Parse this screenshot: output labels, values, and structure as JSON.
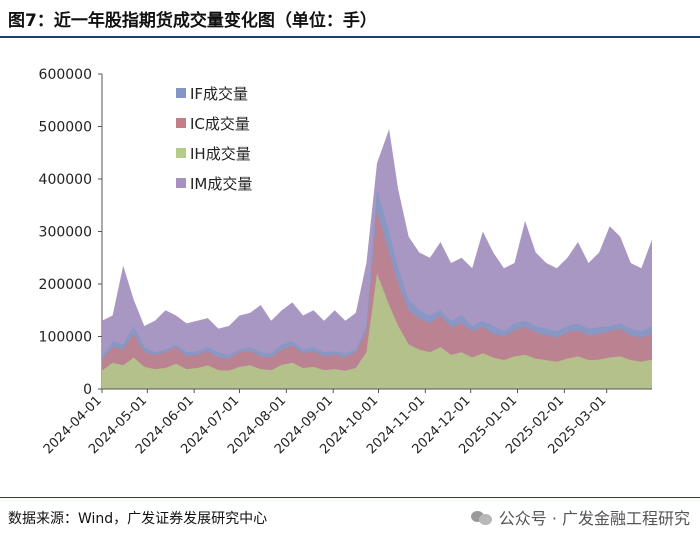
{
  "title": "图7：近一年股指期货成交量变化图（单位：手）",
  "source": "数据来源：Wind，广发证券发展研究中心",
  "watermark": "公众号 · 广发金融工程研究",
  "watermark_icon": "wechat-icon",
  "colors": {
    "rule": "#1f3d7a",
    "IF": "#8497c4",
    "IC": "#c47e8a",
    "IH": "#b3cc88",
    "IM": "#a491c0"
  },
  "chart_data": {
    "type": "area",
    "title": "",
    "xlabel": "",
    "ylabel": "",
    "ylim": [
      0,
      600000
    ],
    "yticks": [
      0,
      100000,
      200000,
      300000,
      400000,
      500000,
      600000
    ],
    "ytick_labels": [
      "0",
      "100000",
      "200000",
      "300000",
      "400000",
      "500000",
      "600000"
    ],
    "x_range": [
      "2024-04-01",
      "2025-03-31"
    ],
    "xtick_labels": [
      "2024-04-01",
      "2024-05-01",
      "2024-06-01",
      "2024-07-01",
      "2024-08-01",
      "2024-09-01",
      "2024-10-01",
      "2024-11-01",
      "2024-12-01",
      "2025-01-01",
      "2025-02-01",
      "2025-03-01"
    ],
    "legend_position": "top-left",
    "grid": false,
    "series_order_front_to_back": [
      "IH",
      "IC",
      "IF",
      "IM"
    ],
    "series": [
      {
        "name": "IF成交量",
        "key": "IF",
        "x": [
          "2024-04-01",
          "2024-04-08",
          "2024-04-15",
          "2024-04-22",
          "2024-04-29",
          "2024-05-06",
          "2024-05-13",
          "2024-05-20",
          "2024-05-27",
          "2024-06-03",
          "2024-06-10",
          "2024-06-17",
          "2024-06-24",
          "2024-07-01",
          "2024-07-08",
          "2024-07-15",
          "2024-07-22",
          "2024-07-29",
          "2024-08-05",
          "2024-08-12",
          "2024-08-19",
          "2024-08-26",
          "2024-09-02",
          "2024-09-09",
          "2024-09-16",
          "2024-09-23",
          "2024-09-30",
          "2024-10-08",
          "2024-10-14",
          "2024-10-21",
          "2024-10-28",
          "2024-11-04",
          "2024-11-11",
          "2024-11-18",
          "2024-11-25",
          "2024-12-02",
          "2024-12-09",
          "2024-12-16",
          "2024-12-23",
          "2024-12-30",
          "2025-01-06",
          "2025-01-13",
          "2025-01-20",
          "2025-01-27",
          "2025-02-03",
          "2025-02-10",
          "2025-02-17",
          "2025-02-24",
          "2025-03-03",
          "2025-03-10",
          "2025-03-17",
          "2025-03-24",
          "2025-03-31"
        ],
        "values": [
          60000,
          90000,
          85000,
          120000,
          80000,
          70000,
          75000,
          85000,
          70000,
          72000,
          80000,
          70000,
          65000,
          75000,
          80000,
          70000,
          68000,
          85000,
          90000,
          75000,
          80000,
          70000,
          72000,
          68000,
          75000,
          120000,
          380000,
          300000,
          230000,
          170000,
          150000,
          140000,
          150000,
          130000,
          140000,
          120000,
          130000,
          120000,
          110000,
          125000,
          130000,
          120000,
          115000,
          110000,
          120000,
          125000,
          115000,
          118000,
          120000,
          125000,
          115000,
          110000,
          120000
        ]
      },
      {
        "name": "IC成交量",
        "key": "IC",
        "x": [
          "2024-04-01",
          "2024-04-08",
          "2024-04-15",
          "2024-04-22",
          "2024-04-29",
          "2024-05-06",
          "2024-05-13",
          "2024-05-20",
          "2024-05-27",
          "2024-06-03",
          "2024-06-10",
          "2024-06-17",
          "2024-06-24",
          "2024-07-01",
          "2024-07-08",
          "2024-07-15",
          "2024-07-22",
          "2024-07-29",
          "2024-08-05",
          "2024-08-12",
          "2024-08-19",
          "2024-08-26",
          "2024-09-02",
          "2024-09-09",
          "2024-09-16",
          "2024-09-23",
          "2024-09-30",
          "2024-10-08",
          "2024-10-14",
          "2024-10-21",
          "2024-10-28",
          "2024-11-04",
          "2024-11-11",
          "2024-11-18",
          "2024-11-25",
          "2024-12-02",
          "2024-12-09",
          "2024-12-16",
          "2024-12-23",
          "2024-12-30",
          "2025-01-06",
          "2025-01-13",
          "2025-01-20",
          "2025-01-27",
          "2025-02-03",
          "2025-02-10",
          "2025-02-17",
          "2025-02-24",
          "2025-03-03",
          "2025-03-10",
          "2025-03-17",
          "2025-03-24",
          "2025-03-31"
        ],
        "values": [
          55000,
          80000,
          75000,
          105000,
          70000,
          65000,
          70000,
          80000,
          62000,
          65000,
          72000,
          60000,
          58000,
          70000,
          72000,
          62000,
          60000,
          75000,
          82000,
          68000,
          72000,
          62000,
          65000,
          60000,
          70000,
          110000,
          340000,
          260000,
          200000,
          150000,
          135000,
          125000,
          140000,
          118000,
          125000,
          110000,
          118000,
          105000,
          100000,
          112000,
          118000,
          108000,
          102000,
          98000,
          108000,
          112000,
          102000,
          105000,
          110000,
          115000,
          102000,
          98000,
          105000
        ]
      },
      {
        "name": "IH成交量",
        "key": "IH",
        "x": [
          "2024-04-01",
          "2024-04-08",
          "2024-04-15",
          "2024-04-22",
          "2024-04-29",
          "2024-05-06",
          "2024-05-13",
          "2024-05-20",
          "2024-05-27",
          "2024-06-03",
          "2024-06-10",
          "2024-06-17",
          "2024-06-24",
          "2024-07-01",
          "2024-07-08",
          "2024-07-15",
          "2024-07-22",
          "2024-07-29",
          "2024-08-05",
          "2024-08-12",
          "2024-08-19",
          "2024-08-26",
          "2024-09-02",
          "2024-09-09",
          "2024-09-16",
          "2024-09-23",
          "2024-09-30",
          "2024-10-08",
          "2024-10-14",
          "2024-10-21",
          "2024-10-28",
          "2024-11-04",
          "2024-11-11",
          "2024-11-18",
          "2024-11-25",
          "2024-12-02",
          "2024-12-09",
          "2024-12-16",
          "2024-12-23",
          "2024-12-30",
          "2025-01-06",
          "2025-01-13",
          "2025-01-20",
          "2025-01-27",
          "2025-02-03",
          "2025-02-10",
          "2025-02-17",
          "2025-02-24",
          "2025-03-03",
          "2025-03-10",
          "2025-03-17",
          "2025-03-24",
          "2025-03-31"
        ],
        "values": [
          35000,
          50000,
          45000,
          60000,
          42000,
          38000,
          40000,
          48000,
          38000,
          40000,
          45000,
          36000,
          35000,
          42000,
          45000,
          38000,
          36000,
          46000,
          50000,
          40000,
          42000,
          36000,
          38000,
          35000,
          40000,
          70000,
          220000,
          160000,
          120000,
          85000,
          75000,
          70000,
          80000,
          65000,
          70000,
          60000,
          68000,
          60000,
          55000,
          62000,
          65000,
          58000,
          55000,
          52000,
          58000,
          62000,
          55000,
          56000,
          60000,
          62000,
          55000,
          52000,
          56000
        ]
      },
      {
        "name": "IM成交量",
        "key": "IM",
        "x": [
          "2024-04-01",
          "2024-04-08",
          "2024-04-15",
          "2024-04-22",
          "2024-04-29",
          "2024-05-06",
          "2024-05-13",
          "2024-05-20",
          "2024-05-27",
          "2024-06-03",
          "2024-06-10",
          "2024-06-17",
          "2024-06-24",
          "2024-07-01",
          "2024-07-08",
          "2024-07-15",
          "2024-07-22",
          "2024-07-29",
          "2024-08-05",
          "2024-08-12",
          "2024-08-19",
          "2024-08-26",
          "2024-09-02",
          "2024-09-09",
          "2024-09-16",
          "2024-09-23",
          "2024-09-30",
          "2024-10-08",
          "2024-10-14",
          "2024-10-21",
          "2024-10-28",
          "2024-11-04",
          "2024-11-11",
          "2024-11-18",
          "2024-11-25",
          "2024-12-02",
          "2024-12-09",
          "2024-12-16",
          "2024-12-23",
          "2024-12-30",
          "2025-01-06",
          "2025-01-13",
          "2025-01-20",
          "2025-01-27",
          "2025-02-03",
          "2025-02-10",
          "2025-02-17",
          "2025-02-24",
          "2025-03-03",
          "2025-03-10",
          "2025-03-17",
          "2025-03-24",
          "2025-03-31"
        ],
        "values": [
          130000,
          140000,
          235000,
          170000,
          120000,
          130000,
          150000,
          140000,
          125000,
          130000,
          135000,
          115000,
          120000,
          140000,
          145000,
          160000,
          130000,
          150000,
          165000,
          140000,
          150000,
          130000,
          150000,
          130000,
          145000,
          240000,
          430000,
          495000,
          380000,
          290000,
          260000,
          250000,
          280000,
          240000,
          250000,
          230000,
          300000,
          260000,
          230000,
          240000,
          320000,
          260000,
          240000,
          230000,
          250000,
          280000,
          240000,
          260000,
          310000,
          290000,
          240000,
          230000,
          285000
        ]
      }
    ]
  }
}
